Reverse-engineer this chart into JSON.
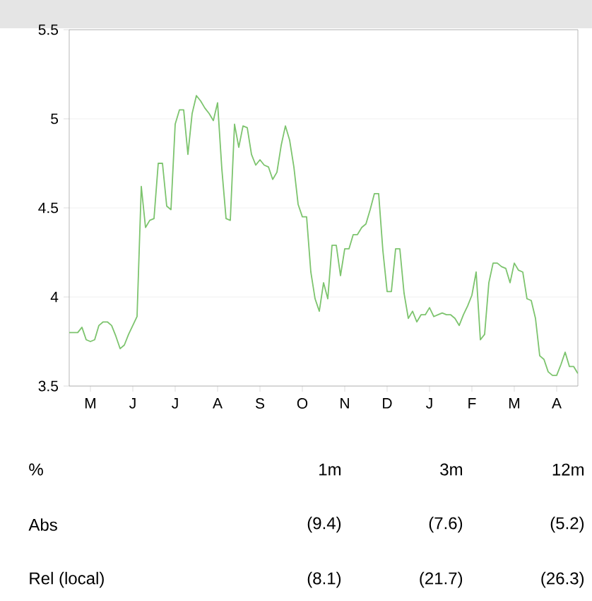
{
  "chart_data": {
    "type": "line",
    "categories": [
      null,
      null,
      null,
      null,
      null,
      "M",
      null,
      null,
      null,
      null,
      null,
      null,
      null,
      null,
      null,
      "J",
      null,
      null,
      null,
      null,
      null,
      null,
      null,
      null,
      null,
      "J",
      null,
      null,
      null,
      null,
      null,
      null,
      null,
      null,
      null,
      "A",
      null,
      null,
      null,
      null,
      null,
      null,
      null,
      null,
      null,
      "S",
      null,
      null,
      null,
      null,
      null,
      null,
      null,
      null,
      null,
      "O",
      null,
      null,
      null,
      null,
      null,
      null,
      null,
      null,
      null,
      "N",
      null,
      null,
      null,
      null,
      null,
      null,
      null,
      null,
      null,
      "D",
      null,
      null,
      null,
      null,
      null,
      null,
      null,
      null,
      null,
      "J",
      null,
      null,
      null,
      null,
      null,
      null,
      null,
      null,
      null,
      "F",
      null,
      null,
      null,
      null,
      null,
      null,
      null,
      null,
      null,
      "M",
      null,
      null,
      null,
      null,
      null,
      null,
      null,
      null,
      null,
      "A",
      null,
      null,
      null,
      null,
      null
    ],
    "series": [
      {
        "color": "#7dc46e",
        "values": [
          3.8,
          3.8,
          3.8,
          3.83,
          3.76,
          3.75,
          3.76,
          3.84,
          3.86,
          3.86,
          3.84,
          3.78,
          3.71,
          3.73,
          3.79,
          3.84,
          3.89,
          4.62,
          4.39,
          4.43,
          4.44,
          4.75,
          4.75,
          4.51,
          4.49,
          4.97,
          5.05,
          5.05,
          4.8,
          5.03,
          5.13,
          5.1,
          5.06,
          5.03,
          4.99,
          5.09,
          4.72,
          4.44,
          4.43,
          4.97,
          4.84,
          4.96,
          4.95,
          4.8,
          4.74,
          4.77,
          4.74,
          4.73,
          4.66,
          4.7,
          4.85,
          4.96,
          4.88,
          4.73,
          4.52,
          4.45,
          4.45,
          4.14,
          3.99,
          3.92,
          4.08,
          3.99,
          4.29,
          4.29,
          4.12,
          4.27,
          4.27,
          4.35,
          4.35,
          4.39,
          4.41,
          4.49,
          4.58,
          4.58,
          4.26,
          4.03,
          4.03,
          4.27,
          4.27,
          4.02,
          3.88,
          3.92,
          3.86,
          3.9,
          3.9,
          3.94,
          3.89,
          3.9,
          3.91,
          3.9,
          3.9,
          3.88,
          3.84,
          3.9,
          3.95,
          4.01,
          4.14,
          3.76,
          3.79,
          4.08,
          4.19,
          4.19,
          4.17,
          4.16,
          4.08,
          4.19,
          4.15,
          4.14,
          3.99,
          3.98,
          3.88,
          3.67,
          3.65,
          3.58,
          3.56,
          3.56,
          3.62,
          3.69,
          3.61,
          3.61,
          3.57
        ]
      }
    ],
    "ylim": [
      3.5,
      5.5
    ],
    "yticks": [
      3.5,
      4,
      4.5,
      5,
      5.5
    ],
    "grid": "y",
    "marker": "none",
    "line_style": "solid",
    "annotations": [
      "%",
      "1m",
      "3m",
      "12m",
      "Abs",
      "(9.4)",
      "(7.6)",
      "(5.2)",
      "Rel (local)",
      "(8.1)",
      "(21.7)",
      "(26.3)"
    ]
  }
}
